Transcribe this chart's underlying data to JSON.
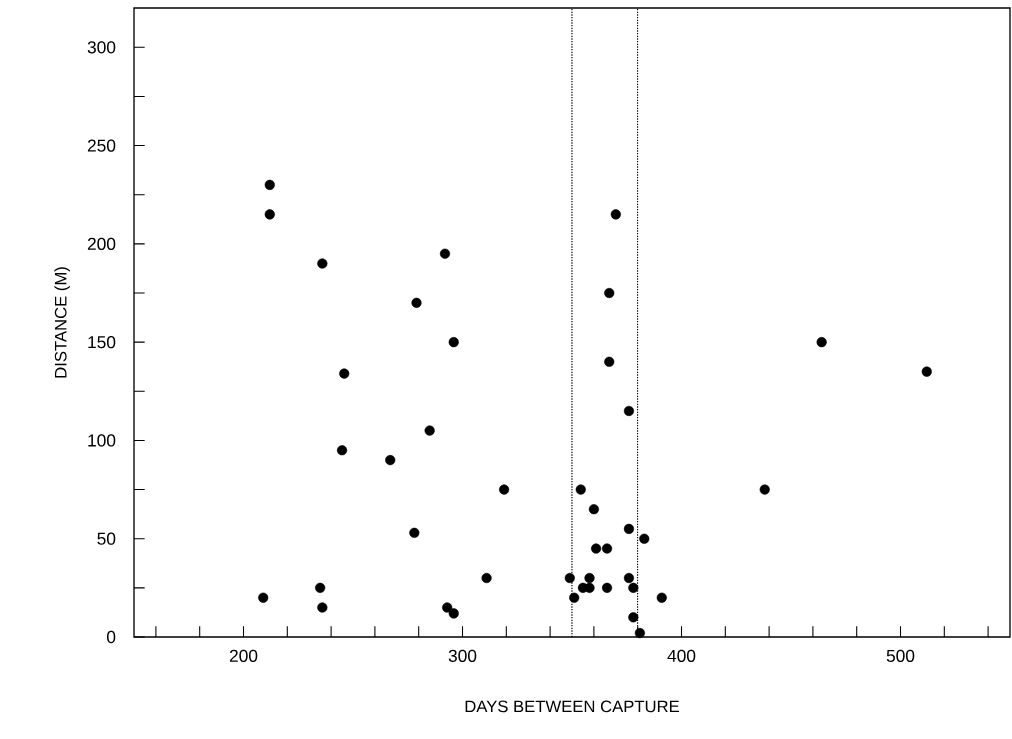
{
  "chart_data": {
    "type": "scatter",
    "xlabel": "DAYS BETWEEN CAPTURE",
    "ylabel": "DISTANCE (M)",
    "xlim": [
      150,
      550
    ],
    "ylim": [
      0,
      320
    ],
    "xticks": [
      {
        "value": 160,
        "label": null
      },
      {
        "value": 180,
        "label": null
      },
      200,
      {
        "value": 220,
        "label": null
      },
      {
        "value": 240,
        "label": null
      },
      {
        "value": 260,
        "label": null
      },
      {
        "value": 280,
        "label": null
      },
      300,
      {
        "value": 320,
        "label": null
      },
      {
        "value": 340,
        "label": null
      },
      {
        "value": 360,
        "label": null
      },
      {
        "value": 380,
        "label": null
      },
      400,
      {
        "value": 420,
        "label": null
      },
      {
        "value": 440,
        "label": null
      },
      {
        "value": 460,
        "label": null
      },
      {
        "value": 480,
        "label": null
      },
      500,
      {
        "value": 520,
        "label": null
      },
      {
        "value": 540,
        "label": null
      }
    ],
    "yticks": [
      0,
      {
        "value": 25,
        "label": null
      },
      50,
      {
        "value": 75,
        "label": null
      },
      100,
      {
        "value": 125,
        "label": null
      },
      150,
      {
        "value": 175,
        "label": null
      },
      200,
      {
        "value": 225,
        "label": null
      },
      250,
      {
        "value": 275,
        "label": null
      },
      300
    ],
    "marker": "circle",
    "ref_lines": [
      {
        "axis": "x",
        "value": 350,
        "color": "#000000",
        "line_style": "dotted"
      },
      {
        "axis": "x",
        "value": 380,
        "color": "#000000",
        "line_style": "dotted"
      }
    ],
    "series": [
      {
        "color": "#000000",
        "x": [
          212,
          212,
          236,
          292,
          279,
          296,
          246,
          285,
          245,
          267,
          319,
          278,
          311,
          235,
          209,
          236,
          293,
          296,
          370,
          367,
          367,
          376,
          354,
          360,
          376,
          383,
          361,
          366,
          349,
          358,
          376,
          355,
          358,
          366,
          378,
          351,
          391,
          378,
          381,
          464,
          512,
          438
        ],
        "values": [
          230,
          215,
          190,
          195,
          170,
          150,
          134,
          105,
          95,
          90,
          75,
          53,
          30,
          25,
          20,
          15,
          15,
          12,
          215,
          175,
          140,
          115,
          75,
          65,
          55,
          50,
          45,
          45,
          30,
          30,
          30,
          25,
          25,
          25,
          25,
          20,
          20,
          10,
          2,
          150,
          135,
          75
        ]
      }
    ]
  }
}
